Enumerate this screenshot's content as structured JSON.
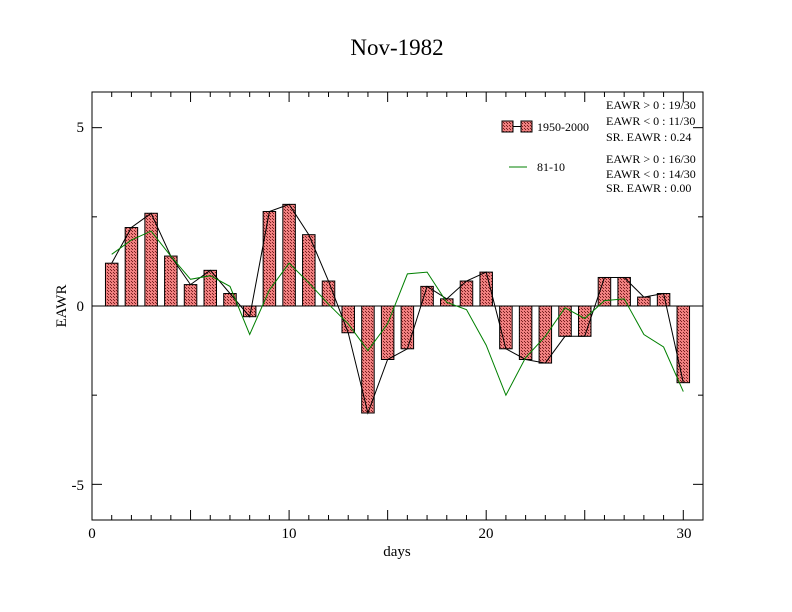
{
  "chart_data": {
    "type": "bar",
    "title": "Nov-1982",
    "xlabel": "days",
    "ylabel": "EAWR",
    "xlim": [
      0,
      31
    ],
    "ylim": [
      -6,
      6
    ],
    "xticks": [
      0,
      10,
      20,
      30
    ],
    "xtick_labels": [
      "0",
      "10",
      "20",
      "30"
    ],
    "yticks": [
      5,
      0,
      -5
    ],
    "ytick_labels": [
      "5",
      "0",
      "-5"
    ],
    "grid": false,
    "legend_position": "top-right",
    "x": [
      1,
      2,
      3,
      4,
      5,
      6,
      7,
      8,
      9,
      10,
      11,
      12,
      13,
      14,
      15,
      16,
      17,
      18,
      19,
      20,
      21,
      22,
      23,
      24,
      25,
      26,
      27,
      28,
      29,
      30
    ],
    "series": [
      {
        "name": "1950-2000",
        "kind": "bar-with-line",
        "fill_color": "#f08080",
        "pattern_color": "#5a1a1a",
        "line_color": "#000000",
        "values": [
          1.2,
          2.2,
          2.6,
          1.4,
          0.6,
          1.0,
          0.35,
          -0.3,
          2.65,
          2.85,
          2.0,
          0.7,
          -0.75,
          -3.0,
          -1.5,
          -1.2,
          0.55,
          0.2,
          0.7,
          0.95,
          -1.2,
          -1.5,
          -1.6,
          -0.85,
          -0.85,
          0.8,
          0.8,
          0.25,
          0.35,
          -2.15
        ]
      },
      {
        "name": "81-10",
        "kind": "line",
        "line_color": "#008000",
        "values": [
          1.45,
          1.85,
          2.1,
          1.4,
          0.75,
          0.85,
          0.55,
          -0.8,
          0.45,
          1.2,
          0.65,
          0.05,
          -0.5,
          -1.25,
          -0.5,
          0.9,
          0.95,
          0.1,
          -0.1,
          -1.1,
          -2.5,
          -1.45,
          -0.85,
          -0.05,
          -0.35,
          0.15,
          0.2,
          -0.8,
          -1.15,
          -2.4
        ]
      }
    ]
  },
  "stats": {
    "group1": [
      "EAWR > 0 : 19/30",
      "EAWR < 0 : 11/30",
      "SR. EAWR :  0.24"
    ],
    "group2": [
      "EAWR > 0 : 16/30",
      "EAWR < 0 : 14/30",
      "SR. EAWR :  0.00"
    ]
  }
}
